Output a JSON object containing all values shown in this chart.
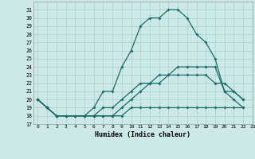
{
  "xlabel": "Humidex (Indice chaleur)",
  "background_color": "#cce9e8",
  "grid_color": "#aad4d3",
  "line_color": "#1a6b6b",
  "xlim": [
    -0.5,
    23
  ],
  "ylim": [
    17,
    32
  ],
  "xticks": [
    0,
    1,
    2,
    3,
    4,
    5,
    6,
    7,
    8,
    9,
    10,
    11,
    12,
    13,
    14,
    15,
    16,
    17,
    18,
    19,
    20,
    21,
    22,
    23
  ],
  "yticks": [
    17,
    18,
    19,
    20,
    21,
    22,
    23,
    24,
    25,
    26,
    27,
    28,
    29,
    30,
    31
  ],
  "series": [
    [
      20,
      19,
      18,
      18,
      18,
      18,
      19,
      21,
      21,
      24,
      26,
      29,
      30,
      30,
      31,
      31,
      30,
      28,
      27,
      25,
      21,
      20,
      19
    ],
    [
      20,
      19,
      18,
      18,
      18,
      18,
      18,
      19,
      19,
      20,
      21,
      22,
      22,
      23,
      23,
      24,
      24,
      24,
      24,
      24,
      21,
      21,
      20
    ],
    [
      20,
      19,
      18,
      18,
      18,
      18,
      18,
      18,
      18,
      18,
      19,
      19,
      19,
      19,
      19,
      19,
      19,
      19,
      19,
      19,
      19,
      19,
      19
    ],
    [
      20,
      19,
      18,
      18,
      18,
      18,
      18,
      18,
      18,
      19,
      20,
      21,
      22,
      22,
      23,
      23,
      23,
      23,
      23,
      22,
      22,
      21,
      20
    ]
  ]
}
